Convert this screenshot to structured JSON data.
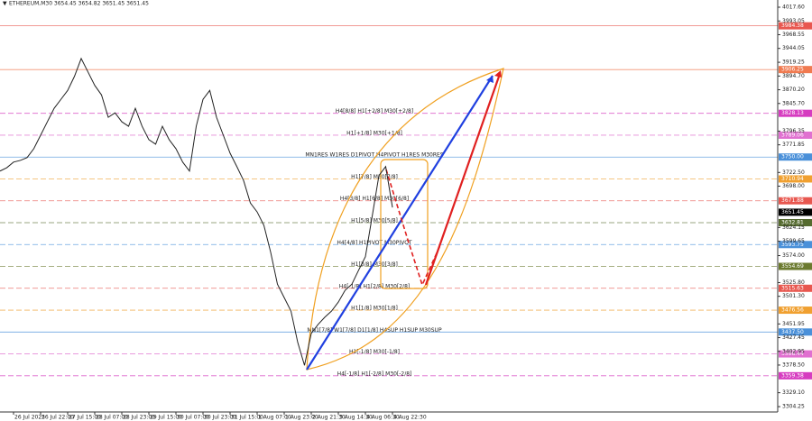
{
  "chart_data": {
    "type": "line",
    "title": "ETHEREUM,M30 3654.45 3654.82 3651.45 3651.45",
    "color": "#222222",
    "categories": [
      null,
      null,
      "26 Jul 2025",
      null,
      null,
      null,
      "26 Jul 22:00",
      null,
      null,
      null,
      "27 Jul 15:00",
      null,
      null,
      null,
      "28 Jul 07:00",
      null,
      null,
      null,
      "28 Jul 23:00",
      null,
      null,
      null,
      "29 Jul 15:00",
      null,
      null,
      null,
      "30 Jul 07:00",
      null,
      null,
      null,
      "30 Jul 23:00",
      null,
      null,
      null,
      "31 Jul 15:00",
      null,
      null,
      null,
      "1 Aug 07:00",
      null,
      null,
      null,
      "1 Aug 23:00",
      null,
      null,
      null,
      "2 Aug 21:30",
      null,
      null,
      null,
      "3 Aug 14:30",
      null,
      null,
      null,
      "4 Aug 06:30",
      null,
      null,
      null,
      "4 Aug 22:30"
    ],
    "values": [
      3725,
      3731,
      3741,
      3744,
      3749,
      3765,
      3789,
      3813,
      3837,
      3853,
      3869,
      3894,
      3926,
      3902,
      3878,
      3861,
      3821,
      3829,
      3813,
      3805,
      3837,
      3805,
      3781,
      3773,
      3805,
      3781,
      3765,
      3741,
      3725,
      3805,
      3853,
      3869,
      3821,
      3789,
      3757,
      3733,
      3708,
      3668,
      3652,
      3628,
      3580,
      3523,
      3499,
      3475,
      3419,
      3378,
      3435,
      3451,
      3464,
      3475,
      3491,
      3512,
      3523,
      3548,
      3572,
      3644,
      3717,
      3733,
      3660
    ],
    "ylim": [
      3294.7,
      4030.5
    ],
    "yticks": [
      {
        "value": 4017.6,
        "label": "4017.60"
      },
      {
        "value": 3993.05,
        "label": "3993.05"
      },
      {
        "value": 3968.55,
        "label": "3968.55"
      },
      {
        "value": 3944.05,
        "label": "3944.05"
      },
      {
        "value": 3919.25,
        "label": "3919.25"
      },
      {
        "value": 3894.7,
        "label": "3894.70"
      },
      {
        "value": 3870.2,
        "label": "3870.20"
      },
      {
        "value": 3845.7,
        "label": "3845.70"
      },
      {
        "value": 3796.35,
        "label": "3796.35"
      },
      {
        "value": 3771.85,
        "label": "3771.85"
      },
      {
        "value": 3722.5,
        "label": "3722.50"
      },
      {
        "value": 3698,
        "label": "3698.00"
      },
      {
        "value": 3624.15,
        "label": "3624.15"
      },
      {
        "value": 3599.65,
        "label": "3599.65"
      },
      {
        "value": 3574,
        "label": "3574.00"
      },
      {
        "value": 3525.8,
        "label": "3525.80"
      },
      {
        "value": 3501.3,
        "label": "3501.30"
      },
      {
        "value": 3451.95,
        "label": "3451.95"
      },
      {
        "value": 3427.45,
        "label": "3427.45"
      },
      {
        "value": 3402.95,
        "label": "3402.95"
      },
      {
        "value": 3378.5,
        "label": "3378.50"
      },
      {
        "value": 3329.1,
        "label": "3329.10"
      },
      {
        "value": 3304.25,
        "label": "3304.25"
      }
    ],
    "last_price": {
      "value": 3651.45,
      "label": "3651.45"
    },
    "levels": [
      {
        "value": 3984.38,
        "label": "3984.38",
        "color": "#e8574f",
        "dashed": false
      },
      {
        "value": 3906.25,
        "label": "3906.25",
        "color": "#f07a50",
        "dashed": false
      },
      {
        "value": 3828.13,
        "label": "3828.13",
        "color": "#d63cc0",
        "dashed": true,
        "note": "H4[8/8] H1[+2/8] M30[+2/8]"
      },
      {
        "value": 3789.06,
        "label": "3789.06",
        "color": "#e070d0",
        "dashed": true,
        "note": "H1[+1/8] M30[+1/8]"
      },
      {
        "value": 3750,
        "label": "3750.00",
        "color": "#4a90d9",
        "dashed": false,
        "note": "MN1RES W1RES D1PIVOT H4PIVOT H1RES M30RES"
      },
      {
        "value": 3710.94,
        "label": "3710.94",
        "color": "#f0a030",
        "dashed": true,
        "note": "H1[7/8] M30[7/8]"
      },
      {
        "value": 3671.88,
        "label": "3671.88",
        "color": "#e8574f",
        "dashed": true,
        "note": "H4[3/8] H1[6/8] M30[6/8]"
      },
      {
        "value": 3632.81,
        "label": "3632.81",
        "color": "#556b2f",
        "dashed": true,
        "note": "H1[5/8] M30[5/8]"
      },
      {
        "value": 3593.75,
        "label": "3593.75",
        "color": "#4a90d9",
        "dashed": true,
        "note": "H4[4/8] H1PIVOT M30PIVOT"
      },
      {
        "value": 3554.69,
        "label": "3554.69",
        "color": "#6b7a2f",
        "dashed": true,
        "note": "H1[3/8] M30[3/8]"
      },
      {
        "value": 3515.63,
        "label": "3515.63",
        "color": "#e8574f",
        "dashed": true,
        "note": "H4[-1/8] H1[2/8] M30[2/8]"
      },
      {
        "value": 3476.56,
        "label": "3476.56",
        "color": "#f0a030",
        "dashed": true,
        "note": "H1[1/8] M30[1/8]"
      },
      {
        "value": 3437.5,
        "label": "3437.50",
        "color": "#4a90d9",
        "dashed": false,
        "note": "MN1[7/8] W1[7/8] D1[1/8] H4SUP H1SUP M30SUP"
      },
      {
        "value": 3398.44,
        "label": "3398.44",
        "color": "#e070d0",
        "dashed": true,
        "note": "H1[-1/8] M30[-1/8]"
      },
      {
        "value": 3359.38,
        "label": "3359.38",
        "color": "#d63cc0",
        "dashed": true,
        "note": "H4[-1/8] H1[-2/8] M30[-2/8]"
      }
    ]
  }
}
